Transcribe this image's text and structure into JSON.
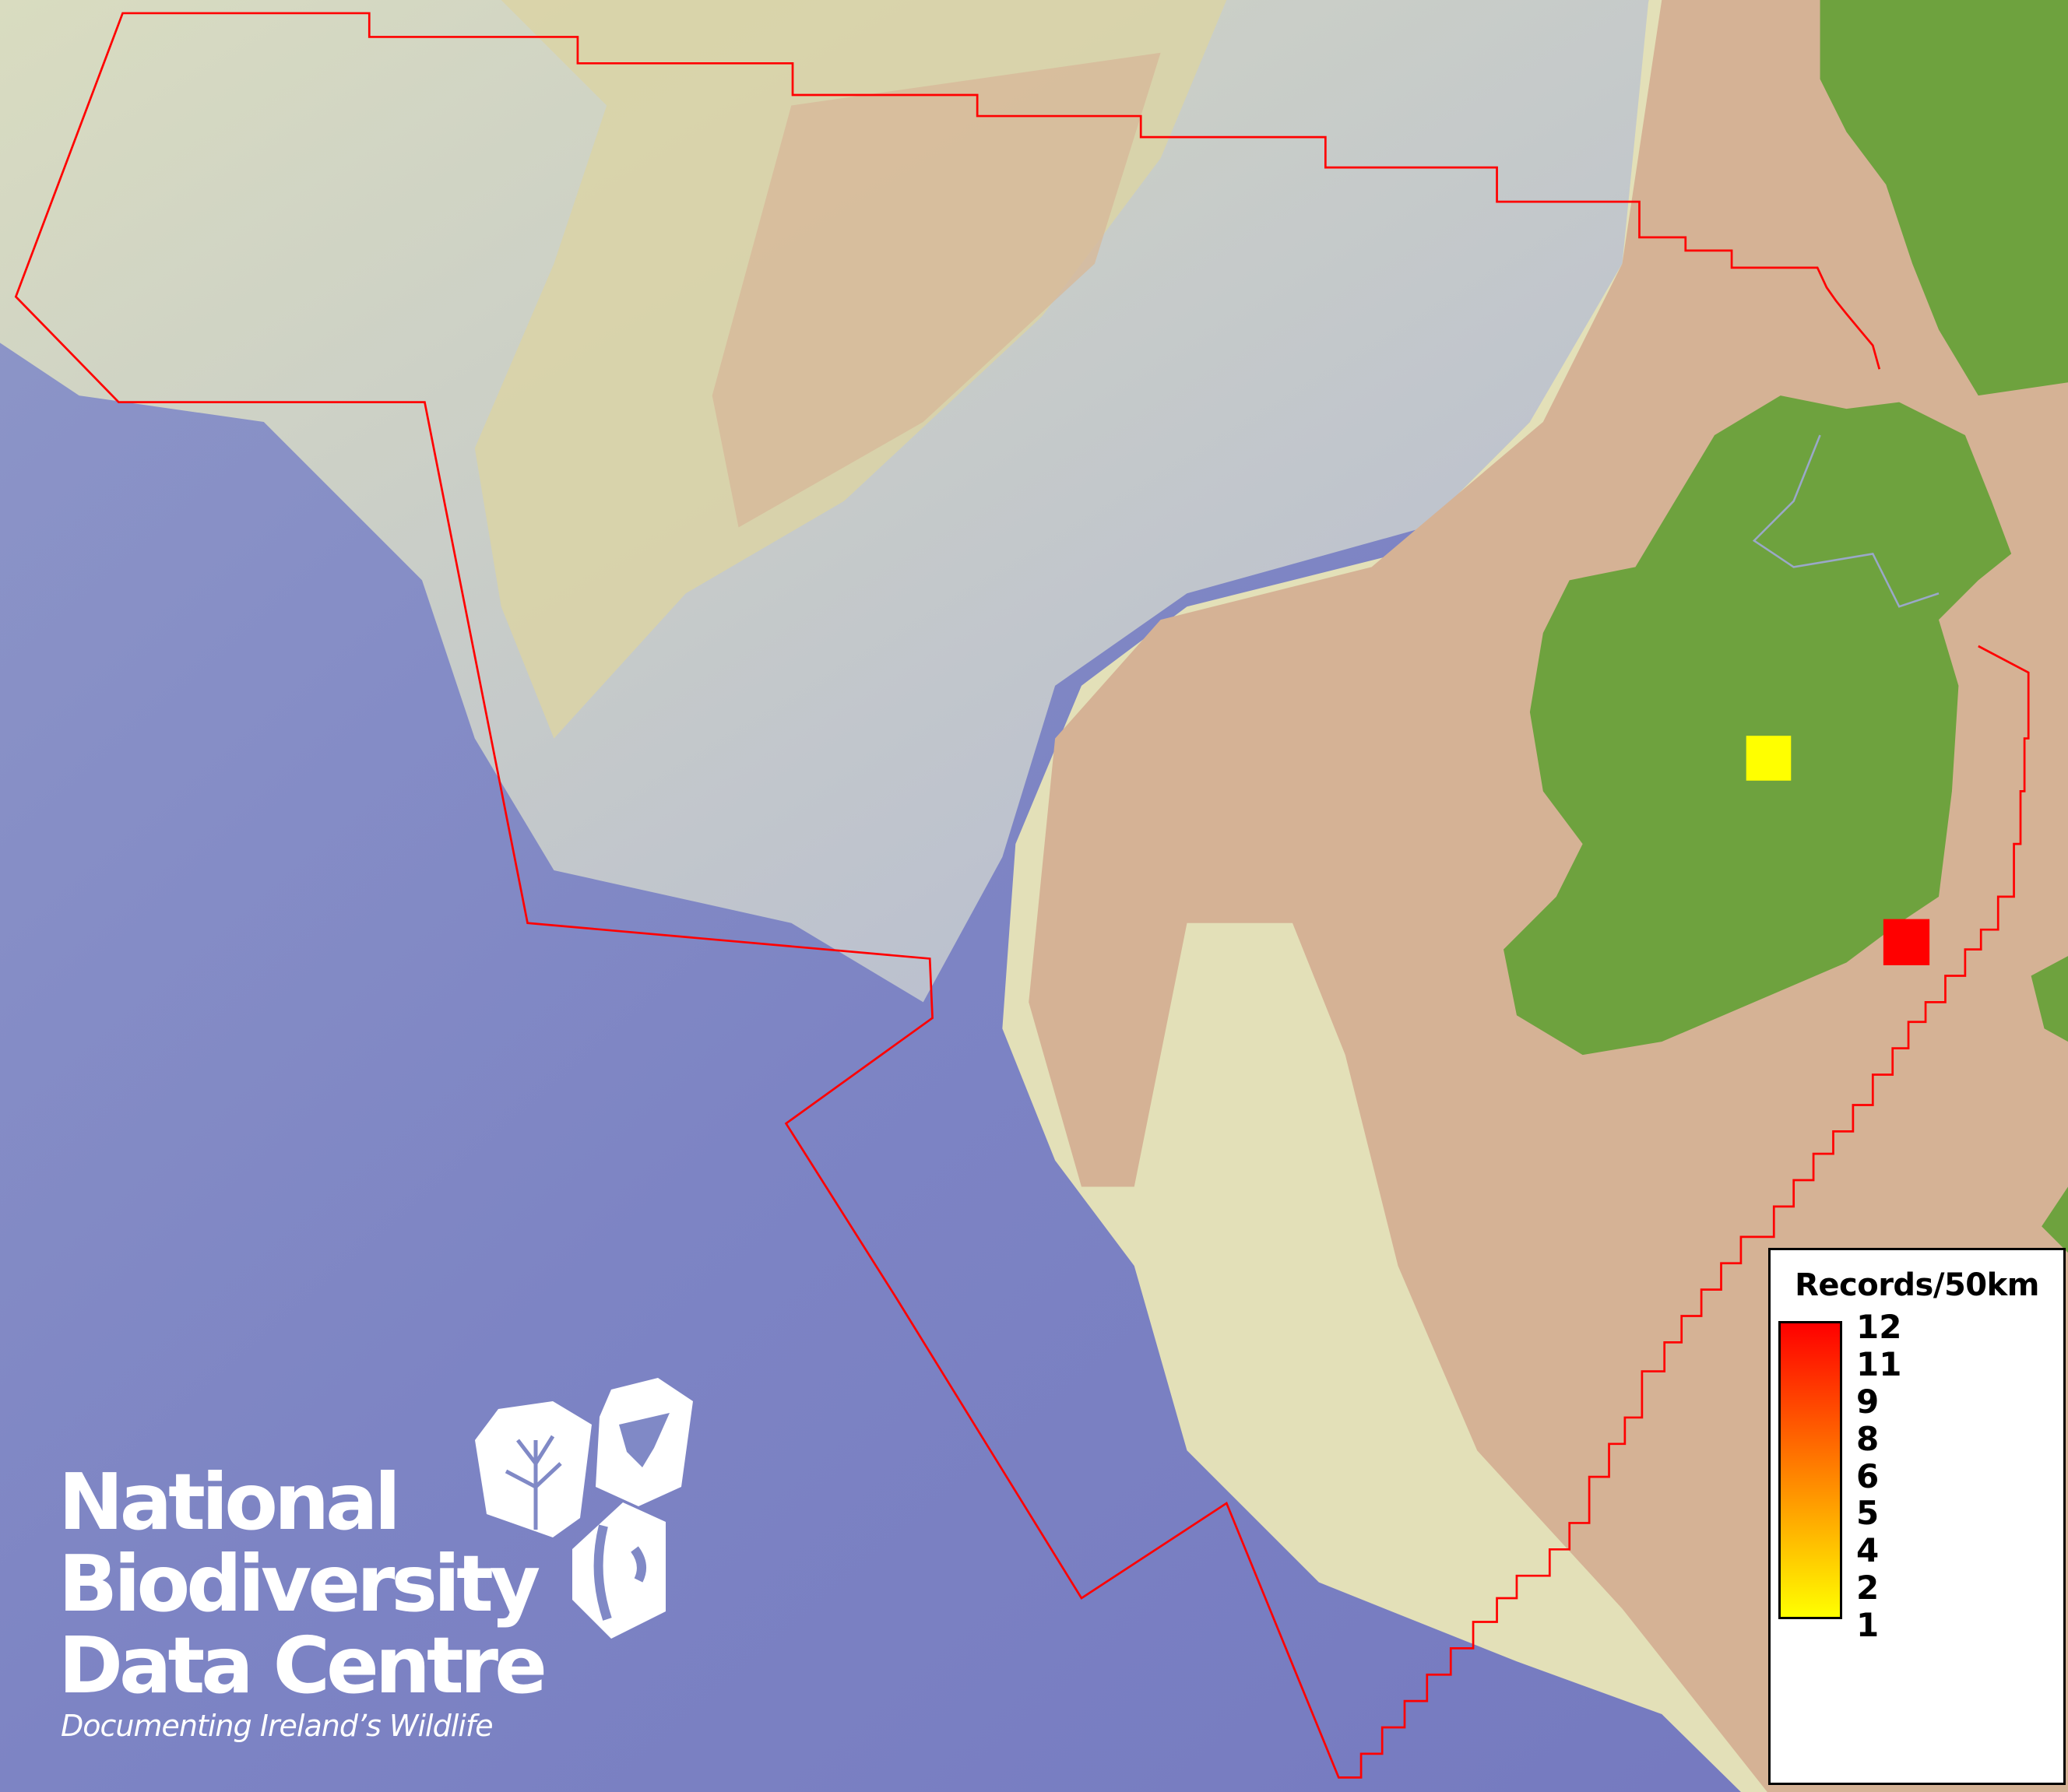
{
  "map": {
    "colors": {
      "deep_ocean": "#7d84c4",
      "slope": "#b9c2cf",
      "shelf": "#dcd9b0",
      "shallow": "#d8b898",
      "land": "#6ea23e",
      "boundary": "#ff0000"
    },
    "records": [
      {
        "cell": "inland-west",
        "value": 1,
        "color": "#ffff00"
      },
      {
        "cell": "south-east",
        "value": 12,
        "color": "#ff0000"
      }
    ]
  },
  "legend": {
    "title": "Records/50km",
    "ticks": [
      "12",
      "11",
      "9",
      "8",
      "6",
      "5",
      "4",
      "2",
      "1"
    ],
    "ramp_colors": [
      "#ff0000",
      "#ff8000",
      "#ffff00"
    ]
  },
  "logo": {
    "line1": "National",
    "line2": "Biodiversity",
    "line3": "Data Centre",
    "tagline": "Documenting Ireland’s Wildlife",
    "icons": [
      "plant-icon",
      "butterfly-icon",
      "seahorse-icon"
    ]
  }
}
